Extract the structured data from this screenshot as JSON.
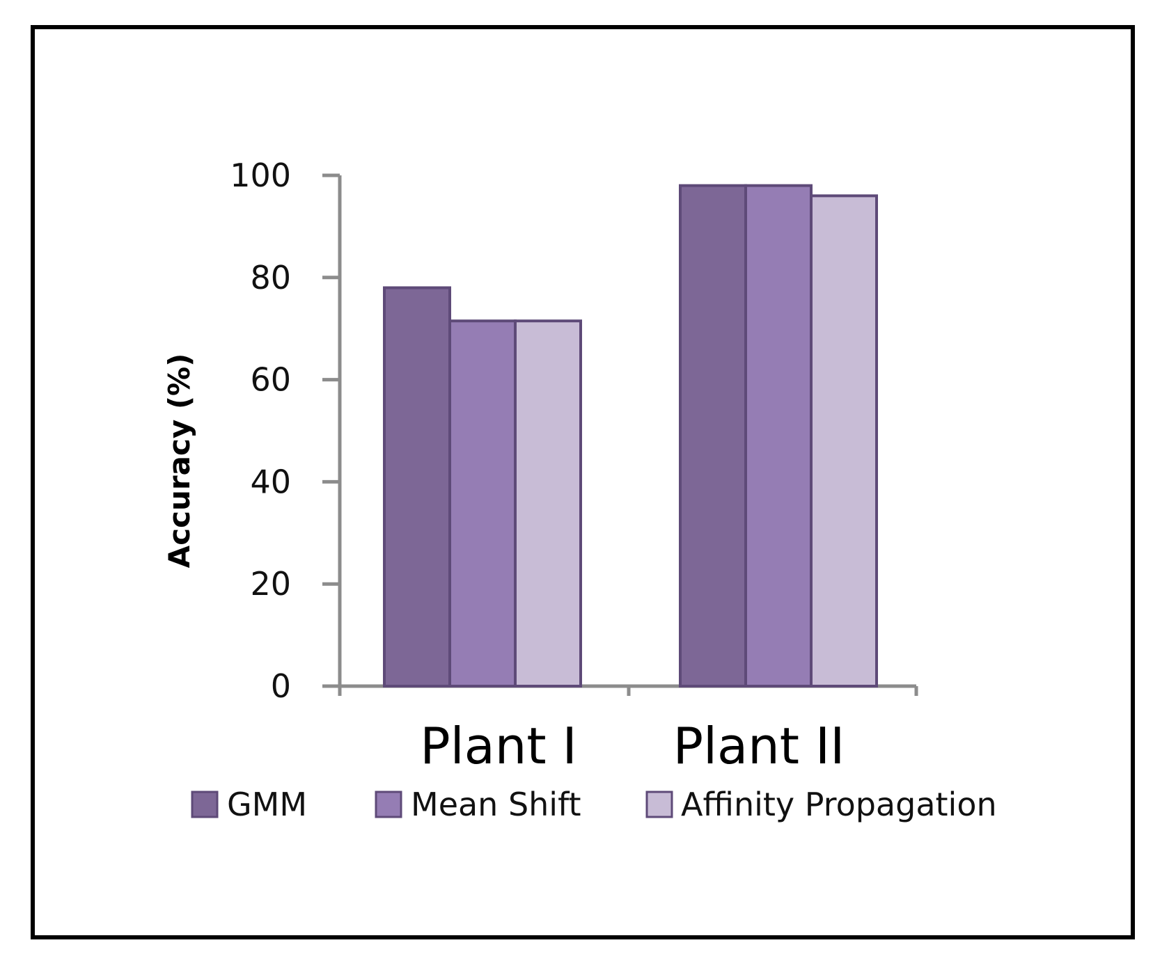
{
  "chart_data": {
    "type": "bar",
    "title": "",
    "xlabel": "",
    "ylabel": "Accuracy (%)",
    "ylim": [
      0,
      100
    ],
    "yticks": [
      0,
      20,
      40,
      60,
      80,
      100
    ],
    "categories": [
      "Plant I",
      "Plant II"
    ],
    "series": [
      {
        "name": "GMM",
        "values": [
          78,
          98
        ],
        "color": "#7d6796"
      },
      {
        "name": "Mean Shift",
        "values": [
          71.5,
          98
        ],
        "color": "#957db4"
      },
      {
        "name": "Affinity Propagation",
        "values": [
          71.5,
          96
        ],
        "color": "#c8bcd6"
      }
    ],
    "bar_edge_color": "#5e4a78",
    "axis_color": "#8c8c8c",
    "grid": false,
    "legend_position": "bottom"
  }
}
